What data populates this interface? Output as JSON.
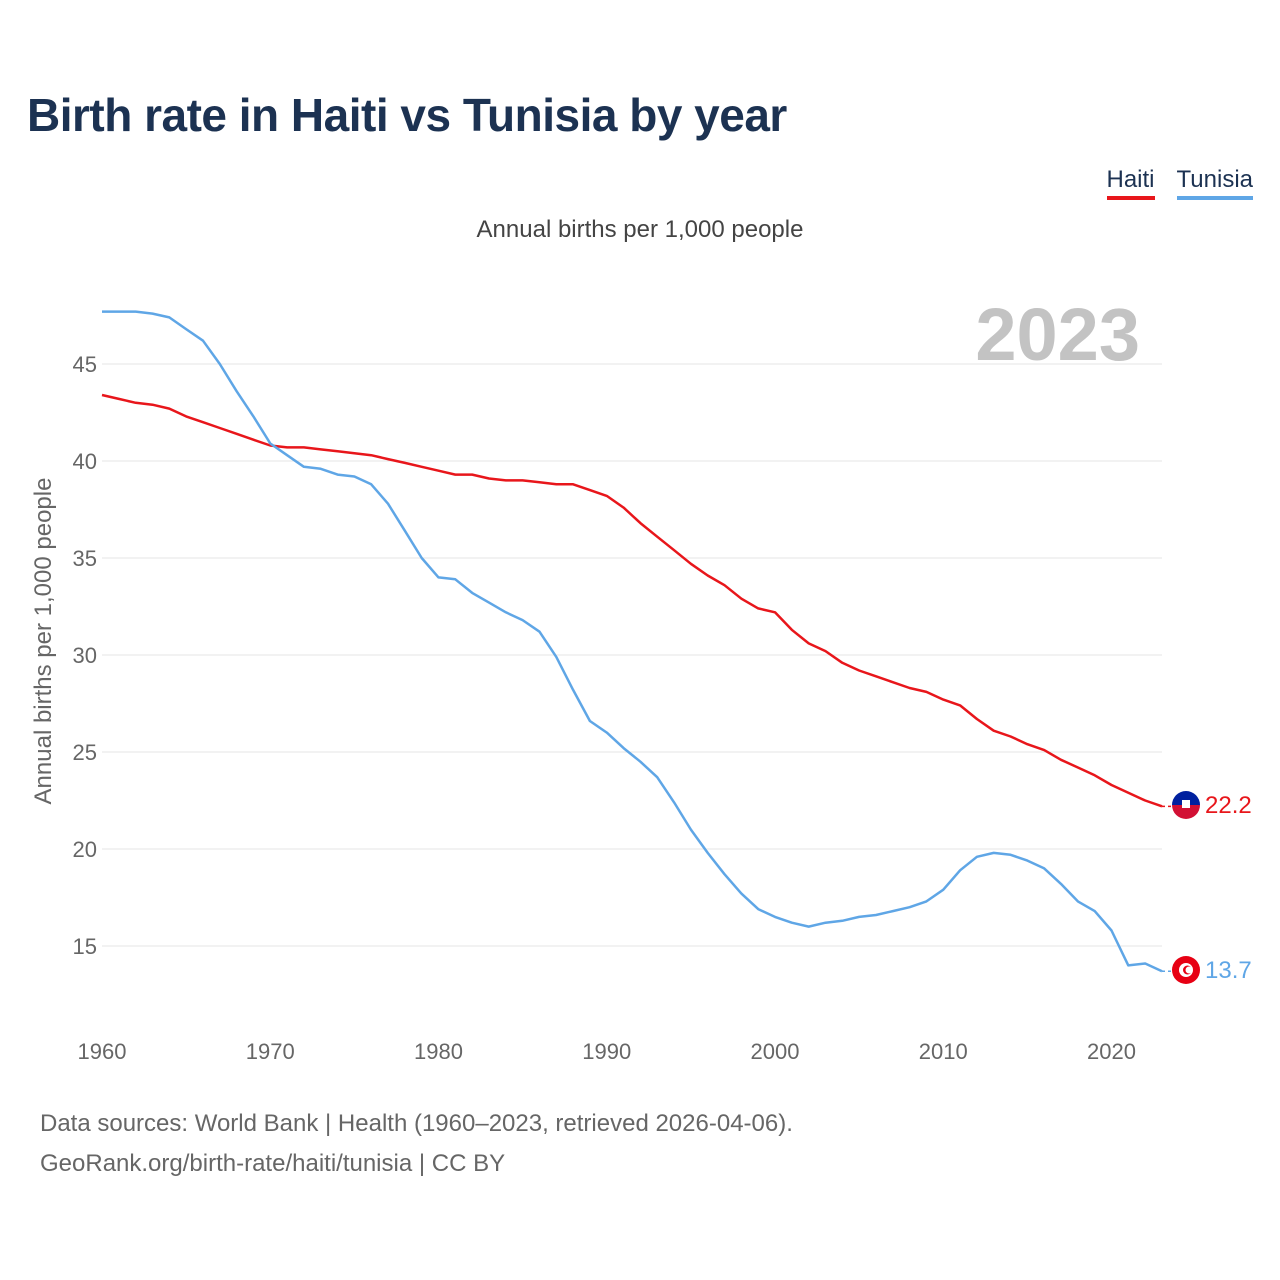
{
  "title": "Birth rate in Haiti vs Tunisia by year",
  "subtitle": "Annual births per 1,000 people",
  "year_display": "2023",
  "footer": {
    "line1": "Data sources: World Bank | Health (1960–2023, retrieved 2026-04-06).",
    "line2": "GeoRank.org/birth-rate/haiti/tunisia | CC BY"
  },
  "legend": [
    {
      "name": "Haiti",
      "color": "#e8161b"
    },
    {
      "name": "Tunisia",
      "color": "#5fa6e6"
    }
  ],
  "chart_data": {
    "type": "line",
    "title": "Birth rate in Haiti vs Tunisia by year",
    "xlabel": "",
    "ylabel": "Annual births per 1,000 people",
    "xlim": [
      1960,
      2023
    ],
    "ylim": [
      11,
      49
    ],
    "x_ticks": [
      1960,
      1970,
      1980,
      1990,
      2000,
      2010,
      2020
    ],
    "y_ticks": [
      15,
      20,
      25,
      30,
      35,
      40,
      45
    ],
    "grid": true,
    "legend_position": "top-right",
    "x": [
      1960,
      1961,
      1962,
      1963,
      1964,
      1965,
      1966,
      1967,
      1968,
      1969,
      1970,
      1971,
      1972,
      1973,
      1974,
      1975,
      1976,
      1977,
      1978,
      1979,
      1980,
      1981,
      1982,
      1983,
      1984,
      1985,
      1986,
      1987,
      1988,
      1989,
      1990,
      1991,
      1992,
      1993,
      1994,
      1995,
      1996,
      1997,
      1998,
      1999,
      2000,
      2001,
      2002,
      2003,
      2004,
      2005,
      2006,
      2007,
      2008,
      2009,
      2010,
      2011,
      2012,
      2013,
      2014,
      2015,
      2016,
      2017,
      2018,
      2019,
      2020,
      2021,
      2022,
      2023
    ],
    "series": [
      {
        "name": "Haiti",
        "color": "#e8161b",
        "end_label": "22.2",
        "values": [
          43.4,
          43.2,
          43.0,
          42.9,
          42.7,
          42.3,
          42.0,
          41.7,
          41.4,
          41.1,
          40.8,
          40.7,
          40.7,
          40.6,
          40.5,
          40.4,
          40.3,
          40.1,
          39.9,
          39.7,
          39.5,
          39.3,
          39.3,
          39.1,
          39.0,
          39.0,
          38.9,
          38.8,
          38.8,
          38.5,
          38.2,
          37.6,
          36.8,
          36.1,
          35.4,
          34.7,
          34.1,
          33.6,
          32.9,
          32.4,
          32.2,
          31.3,
          30.6,
          30.2,
          29.6,
          29.2,
          28.9,
          28.6,
          28.3,
          28.1,
          27.7,
          27.4,
          26.7,
          26.1,
          25.8,
          25.4,
          25.1,
          24.6,
          24.2,
          23.8,
          23.3,
          22.9,
          22.5,
          22.2
        ]
      },
      {
        "name": "Tunisia",
        "color": "#5fa6e6",
        "end_label": "13.7",
        "values": [
          47.7,
          47.7,
          47.7,
          47.6,
          47.4,
          46.8,
          46.2,
          45.0,
          43.6,
          42.3,
          40.9,
          40.3,
          39.7,
          39.6,
          39.3,
          39.2,
          38.8,
          37.8,
          36.4,
          35.0,
          34.0,
          33.9,
          33.2,
          32.7,
          32.2,
          31.8,
          31.2,
          29.9,
          28.2,
          26.6,
          26.0,
          25.2,
          24.5,
          23.7,
          22.4,
          21.0,
          19.8,
          18.7,
          17.7,
          16.9,
          16.5,
          16.2,
          16.0,
          16.2,
          16.3,
          16.5,
          16.6,
          16.8,
          17.0,
          17.3,
          17.9,
          18.9,
          19.6,
          19.8,
          19.7,
          19.4,
          19.0,
          18.2,
          17.3,
          16.8,
          15.8,
          14.0,
          14.1,
          13.7
        ]
      }
    ]
  }
}
